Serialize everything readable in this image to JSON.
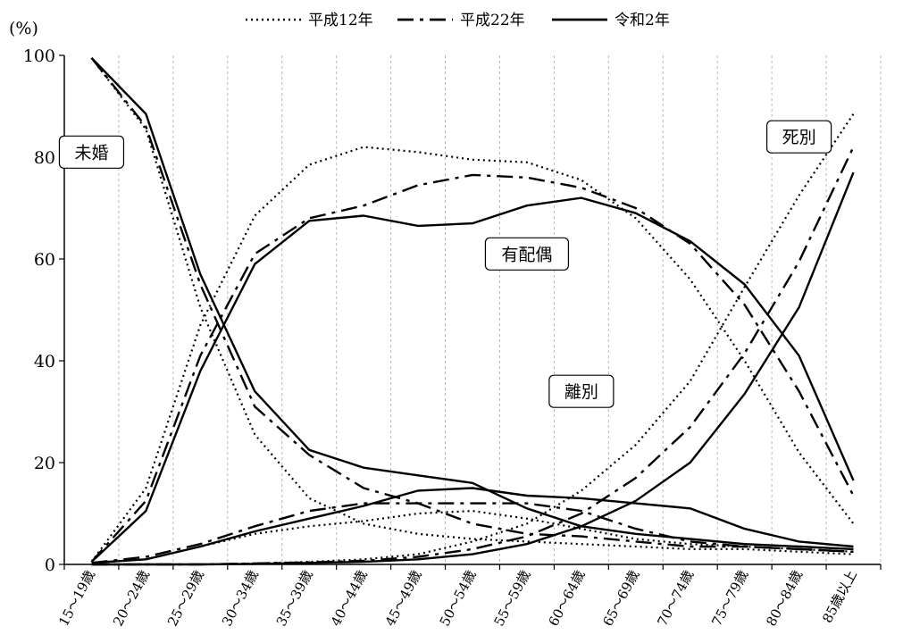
{
  "chart_data": {
    "type": "line",
    "unit_label": "(%)",
    "ylim": [
      0,
      100
    ],
    "y_ticks": [
      "0",
      "20",
      "40",
      "60",
      "80",
      "100"
    ],
    "y_tick_values": [
      0,
      20,
      40,
      60,
      80,
      100
    ],
    "categories": [
      "15～19歳",
      "20～24歳",
      "25～29歳",
      "30～34歳",
      "35～39歳",
      "40～44歳",
      "45～49歳",
      "50～54歳",
      "55～59歳",
      "60～64歳",
      "65～69歳",
      "70～74歳",
      "75～79歳",
      "80～84歳",
      "85歳以上"
    ],
    "grid": "vertical dotted",
    "legend": {
      "position": "top",
      "items": [
        {
          "label": "平成12年",
          "style": "dotted"
        },
        {
          "label": "平成22年",
          "style": "dashdot"
        },
        {
          "label": "令和2年",
          "style": "solid"
        }
      ]
    },
    "annotations": [
      {
        "text": "未婚",
        "category": "15～19歳",
        "y": 81
      },
      {
        "text": "有配偶",
        "category": "55～59歳",
        "y": 61
      },
      {
        "text": "離別",
        "category": "60～64歳",
        "y": 34
      },
      {
        "text": "死別",
        "category": "80～84歳",
        "y": 84
      }
    ],
    "groups": [
      {
        "status": "未婚",
        "series": [
          {
            "year": "平成12年",
            "values": [
              99.5,
              85.5,
              50.5,
              25.5,
              13,
              8,
              6,
              5,
              4.5,
              4,
              3.5,
              3,
              3,
              2.5,
              2
            ]
          },
          {
            "year": "平成22年",
            "values": [
              99.5,
              86,
              55,
              31,
              21.5,
              15,
              12,
              8,
              6,
              5.5,
              4.5,
              3.5,
              3.5,
              3,
              2.5
            ]
          },
          {
            "year": "令和2年",
            "values": [
              99.5,
              88.5,
              57,
              34,
              22.5,
              19,
              17.5,
              16,
              11,
              7.5,
              6,
              5,
              4,
              3.5,
              3
            ]
          }
        ]
      },
      {
        "status": "有配偶",
        "series": [
          {
            "year": "平成12年",
            "values": [
              0.5,
              15,
              47,
              68.5,
              78.5,
              82,
              81,
              79.5,
              79,
              75.5,
              68,
              56,
              40,
              22,
              8
            ]
          },
          {
            "year": "平成22年",
            "values": [
              0.5,
              12.5,
              41,
              61,
              68,
              70.5,
              74.5,
              76.5,
              76,
              74,
              70,
              63,
              51,
              34,
              13.5
            ]
          },
          {
            "year": "令和2年",
            "values": [
              0.5,
              10.5,
              38,
              59,
              67.5,
              68.5,
              66.5,
              67,
              70.5,
              72,
              69,
              63.5,
              55,
              41,
              16.5
            ]
          }
        ]
      },
      {
        "status": "離別",
        "series": [
          {
            "year": "平成12年",
            "values": [
              0.3,
              1,
              3.5,
              6,
              7.5,
              8.5,
              10,
              10.5,
              9,
              7,
              5,
              4,
              3.5,
              3,
              2.5
            ]
          },
          {
            "year": "平成22年",
            "values": [
              0.3,
              1.5,
              4,
              7.5,
              10.5,
              12,
              12,
              12,
              12,
              10.5,
              7,
              4.5,
              3.5,
              3,
              2.5
            ]
          },
          {
            "year": "令和2年",
            "values": [
              0.3,
              1,
              3.5,
              6.5,
              9,
              11.5,
              14.5,
              15,
              13.5,
              13,
              12,
              11,
              7,
              4.5,
              3.5
            ]
          }
        ]
      },
      {
        "status": "死別",
        "series": [
          {
            "year": "平成12年",
            "values": [
              0,
              0,
              0,
              0.2,
              0.5,
              1,
              2,
              4.5,
              8,
              14.5,
              23.5,
              36,
              54.5,
              72.5,
              88.5
            ]
          },
          {
            "year": "平成22年",
            "values": [
              0,
              0,
              0,
              0.2,
              0.4,
              0.7,
              1.5,
              3,
              5.5,
              10,
              17,
              27,
              41.5,
              59.5,
              82
            ]
          },
          {
            "year": "令和2年",
            "values": [
              0,
              0,
              0,
              0.1,
              0.3,
              0.5,
              1,
              2,
              4,
              7.5,
              12.5,
              20,
              33.5,
              50.5,
              77
            ]
          }
        ]
      }
    ]
  }
}
